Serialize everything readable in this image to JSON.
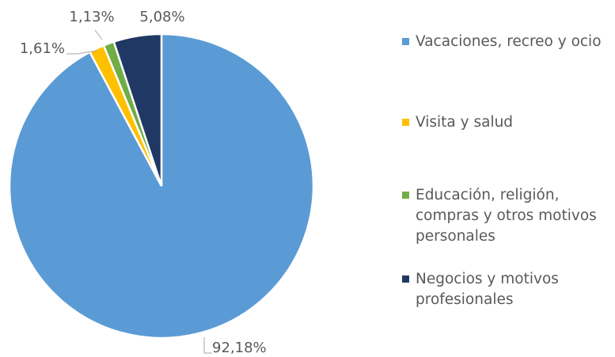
{
  "chart_data": {
    "type": "pie",
    "categories": [
      "Vacaciones, recreo y ocio",
      "Visita y salud",
      "Educación, religión, compras y otros motivos personales",
      "Negocios y motivos profesionales"
    ],
    "values": [
      92.18,
      1.61,
      1.13,
      5.08
    ],
    "value_labels": [
      "92,18%",
      "1,61%",
      "1,13%",
      "5,08%"
    ],
    "colors": [
      "#5b9bd5",
      "#ffc000",
      "#70ad47",
      "#203864"
    ],
    "legend": "right"
  }
}
